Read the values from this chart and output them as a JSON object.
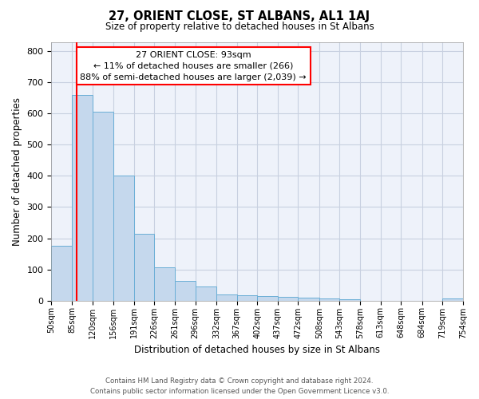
{
  "title": "27, ORIENT CLOSE, ST ALBANS, AL1 1AJ",
  "subtitle": "Size of property relative to detached houses in St Albans",
  "xlabel": "Distribution of detached houses by size in St Albans",
  "ylabel": "Number of detached properties",
  "footer_line1": "Contains HM Land Registry data © Crown copyright and database right 2024.",
  "footer_line2": "Contains public sector information licensed under the Open Government Licence v3.0.",
  "bin_edges": [
    50,
    85,
    120,
    156,
    191,
    226,
    261,
    296,
    332,
    367,
    402,
    437,
    472,
    508,
    543,
    578,
    613,
    648,
    684,
    719,
    754
  ],
  "bar_heights": [
    175,
    660,
    605,
    400,
    215,
    107,
    63,
    45,
    20,
    18,
    15,
    12,
    9,
    7,
    5,
    0,
    0,
    0,
    0,
    8
  ],
  "bar_color": "#c5d8ed",
  "bar_edge_color": "#6aaed6",
  "property_size": 93,
  "annotation_title": "27 ORIENT CLOSE: 93sqm",
  "annotation_line1": "← 11% of detached houses are smaller (266)",
  "annotation_line2": "88% of semi-detached houses are larger (2,039) →",
  "annotation_box_color": "white",
  "annotation_box_edge_color": "red",
  "vline_color": "red",
  "ylim": [
    0,
    830
  ],
  "yticks": [
    0,
    100,
    200,
    300,
    400,
    500,
    600,
    700,
    800
  ],
  "grid_color": "#c8d0e0",
  "background_color": "#eef2fa"
}
